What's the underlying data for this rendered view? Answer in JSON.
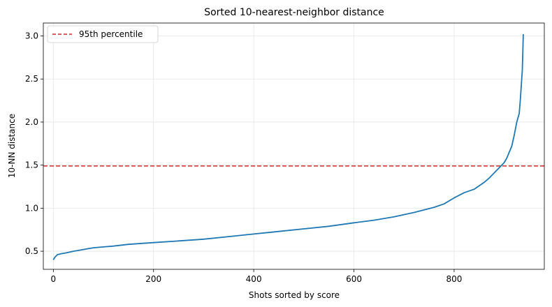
{
  "chart_data": {
    "type": "line",
    "title": "Sorted 10-nearest-neighbor distance",
    "xlabel": "Shots sorted by score",
    "ylabel": "10-NN distance",
    "xlim": [
      -20,
      980
    ],
    "ylim": [
      0.29,
      3.15
    ],
    "xticks": [
      0,
      200,
      400,
      600,
      800
    ],
    "yticks": [
      0.5,
      1.0,
      1.5,
      2.0,
      2.5,
      3.0
    ],
    "xtick_labels": [
      "0",
      "200",
      "400",
      "600",
      "800"
    ],
    "ytick_labels": [
      "0.5",
      "1.0",
      "1.5",
      "2.0",
      "2.5",
      "3.0"
    ],
    "grid": true,
    "legend": {
      "placement": "upper-left",
      "entries": [
        "95th percentile"
      ]
    },
    "series": [
      {
        "color": "#1f77b4",
        "x": [
          0,
          3,
          8,
          15,
          25,
          40,
          60,
          80,
          100,
          120,
          150,
          200,
          250,
          300,
          350,
          400,
          450,
          500,
          550,
          600,
          640,
          680,
          720,
          760,
          780,
          800,
          820,
          840,
          860,
          870,
          880,
          890,
          900,
          905,
          910,
          915,
          920,
          925,
          930,
          932,
          934,
          936,
          937,
          938
        ],
        "y": [
          0.4,
          0.43,
          0.46,
          0.47,
          0.48,
          0.5,
          0.52,
          0.54,
          0.55,
          0.56,
          0.58,
          0.6,
          0.62,
          0.64,
          0.67,
          0.7,
          0.73,
          0.76,
          0.79,
          0.83,
          0.86,
          0.9,
          0.95,
          1.01,
          1.05,
          1.12,
          1.18,
          1.22,
          1.3,
          1.35,
          1.41,
          1.47,
          1.53,
          1.58,
          1.65,
          1.72,
          1.85,
          2.0,
          2.1,
          2.25,
          2.42,
          2.6,
          2.8,
          3.02
        ]
      }
    ],
    "hlines": [
      {
        "y": 1.49,
        "color": "#d62728",
        "style": "dashed",
        "label": "95th percentile"
      }
    ]
  }
}
